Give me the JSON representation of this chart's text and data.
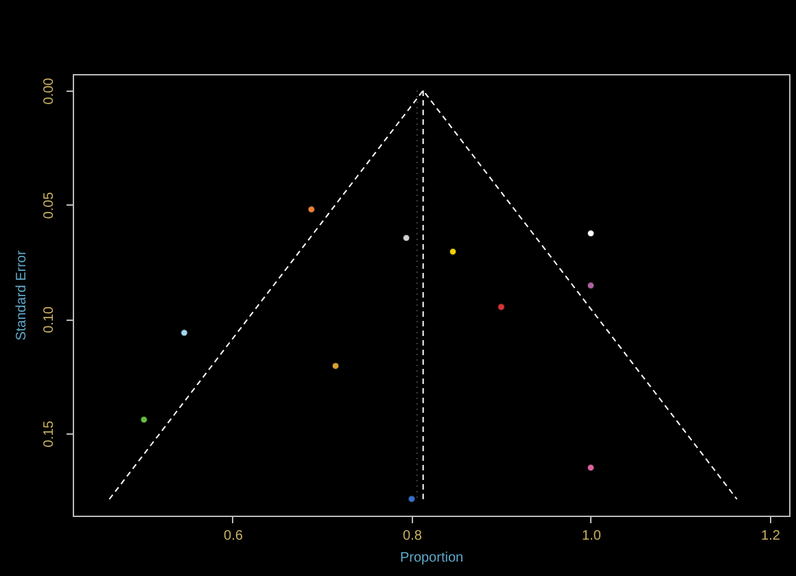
{
  "chart_data": {
    "type": "scatter",
    "xlabel": "Proportion",
    "ylabel": "Standard Error",
    "xlim": [
      0.4215,
      1.2215
    ],
    "ylim": [
      0.186,
      -0.0072
    ],
    "xticks": [
      0.6,
      0.8,
      {
        "value": 1.0,
        "label": "1.0"
      },
      1.2
    ],
    "yticks": [
      {
        "value": 0,
        "label": "0.00"
      },
      0.05,
      {
        "value": 0.1,
        "label": "0.10"
      },
      0.15
    ],
    "marker": "circle",
    "series": [
      {
        "type": "line",
        "marker": "none",
        "line_style": "dashed",
        "color": "#ffffff",
        "x": [
          0.4624,
          0.8128,
          1.1632
        ],
        "values": [
          0.1788,
          0,
          0.1788
        ]
      },
      {
        "type": "line",
        "marker": "none",
        "line_style": "dashed",
        "color": "#ffffff",
        "x": [
          0.8128,
          0.8128
        ],
        "values": [
          0,
          0.1788
        ]
      },
      {
        "type": "line",
        "marker": "none",
        "line_style": "dotted",
        "color": "#404040",
        "x": [
          0.806,
          0.806
        ],
        "values": [
          0,
          0.1788
        ]
      },
      {
        "x": [
          0.688,
          0.794,
          0.546,
          0.715,
          0.501,
          1.0,
          0.846,
          1.0,
          0.9,
          1.0,
          0.8
        ],
        "values": [
          0.052,
          0.0645,
          0.106,
          0.1205,
          0.144,
          0.0625,
          0.0705,
          0.0853,
          0.0947,
          0.165,
          0.1787
        ],
        "colors": [
          "#f08030",
          "#d0d0d0",
          "#a0d8f0",
          "#d8a030",
          "#60c040",
          "#ffffff",
          "#f0d000",
          "#b060a0",
          "#e03030",
          "#e060a0",
          "#3070d0"
        ]
      }
    ]
  }
}
